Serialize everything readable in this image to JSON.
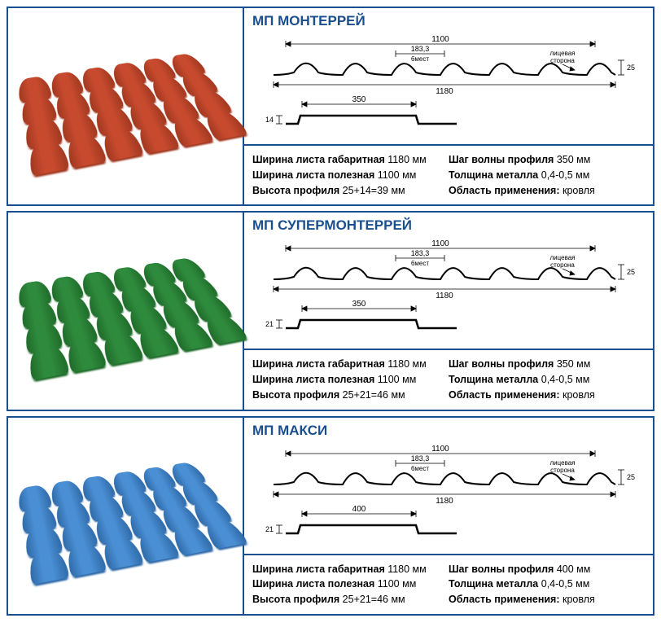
{
  "products": [
    {
      "title": "МП МОНТЕРРЕЙ",
      "tile_color": "#c74a2e",
      "tile_dark": "#a03820",
      "diagram": {
        "top_width": "1100",
        "wave_width": "183,3",
        "wave_note": "6мест",
        "side_label": "лицевая\nсторона",
        "side_h": "25",
        "bottom_width": "1180",
        "step": "350",
        "step_h": "14"
      },
      "specs_left": [
        {
          "label": "Ширина листа габаритная",
          "value": " 1180 мм"
        },
        {
          "label": "Ширина листа полезная",
          "value": " 1100 мм"
        },
        {
          "label": "Высота профиля",
          "value": " 25+14=39 мм"
        }
      ],
      "specs_right": [
        {
          "label": "Шаг волны профиля",
          "value": " 350 мм"
        },
        {
          "label": "Толщина металла",
          "value": " 0,4-0,5 мм"
        },
        {
          "label": "Область применения:",
          "value": " кровля"
        }
      ]
    },
    {
      "title": "МП СУПЕРМОНТЕРРЕЙ",
      "tile_color": "#2e8a3c",
      "tile_dark": "#1f6b2a",
      "diagram": {
        "top_width": "1100",
        "wave_width": "183,3",
        "wave_note": "6мест",
        "side_label": "лицевая\nсторона",
        "side_h": "25",
        "bottom_width": "1180",
        "step": "350",
        "step_h": "21"
      },
      "specs_left": [
        {
          "label": "Ширина листа габаритная",
          "value": " 1180 мм"
        },
        {
          "label": "Ширина листа полезная",
          "value": " 1100 мм"
        },
        {
          "label": "Высота профиля",
          "value": " 25+21=46 мм"
        }
      ],
      "specs_right": [
        {
          "label": "Шаг волны профиля",
          "value": " 350 мм"
        },
        {
          "label": "Толщина металла",
          "value": " 0,4-0,5 мм"
        },
        {
          "label": "Область применения:",
          "value": " кровля"
        }
      ]
    },
    {
      "title": "МП МАКСИ",
      "tile_color": "#4a8fd4",
      "tile_dark": "#2f6aa8",
      "diagram": {
        "top_width": "1100",
        "wave_width": "183,3",
        "wave_note": "6мест",
        "side_label": "лицевая\nсторона",
        "side_h": "25",
        "bottom_width": "1180",
        "step": "400",
        "step_h": "21"
      },
      "specs_left": [
        {
          "label": "Ширина листа габаритная",
          "value": " 1180 мм"
        },
        {
          "label": "Ширина листа полезная",
          "value": " 1100 мм"
        },
        {
          "label": "Высота профиля",
          "value": " 25+21=46 мм"
        }
      ],
      "specs_right": [
        {
          "label": "Шаг волны профиля",
          "value": " 400 мм"
        },
        {
          "label": "Толщина металла",
          "value": " 0,4-0,5 мм"
        },
        {
          "label": "Область применения:",
          "value": " кровля"
        }
      ]
    }
  ]
}
